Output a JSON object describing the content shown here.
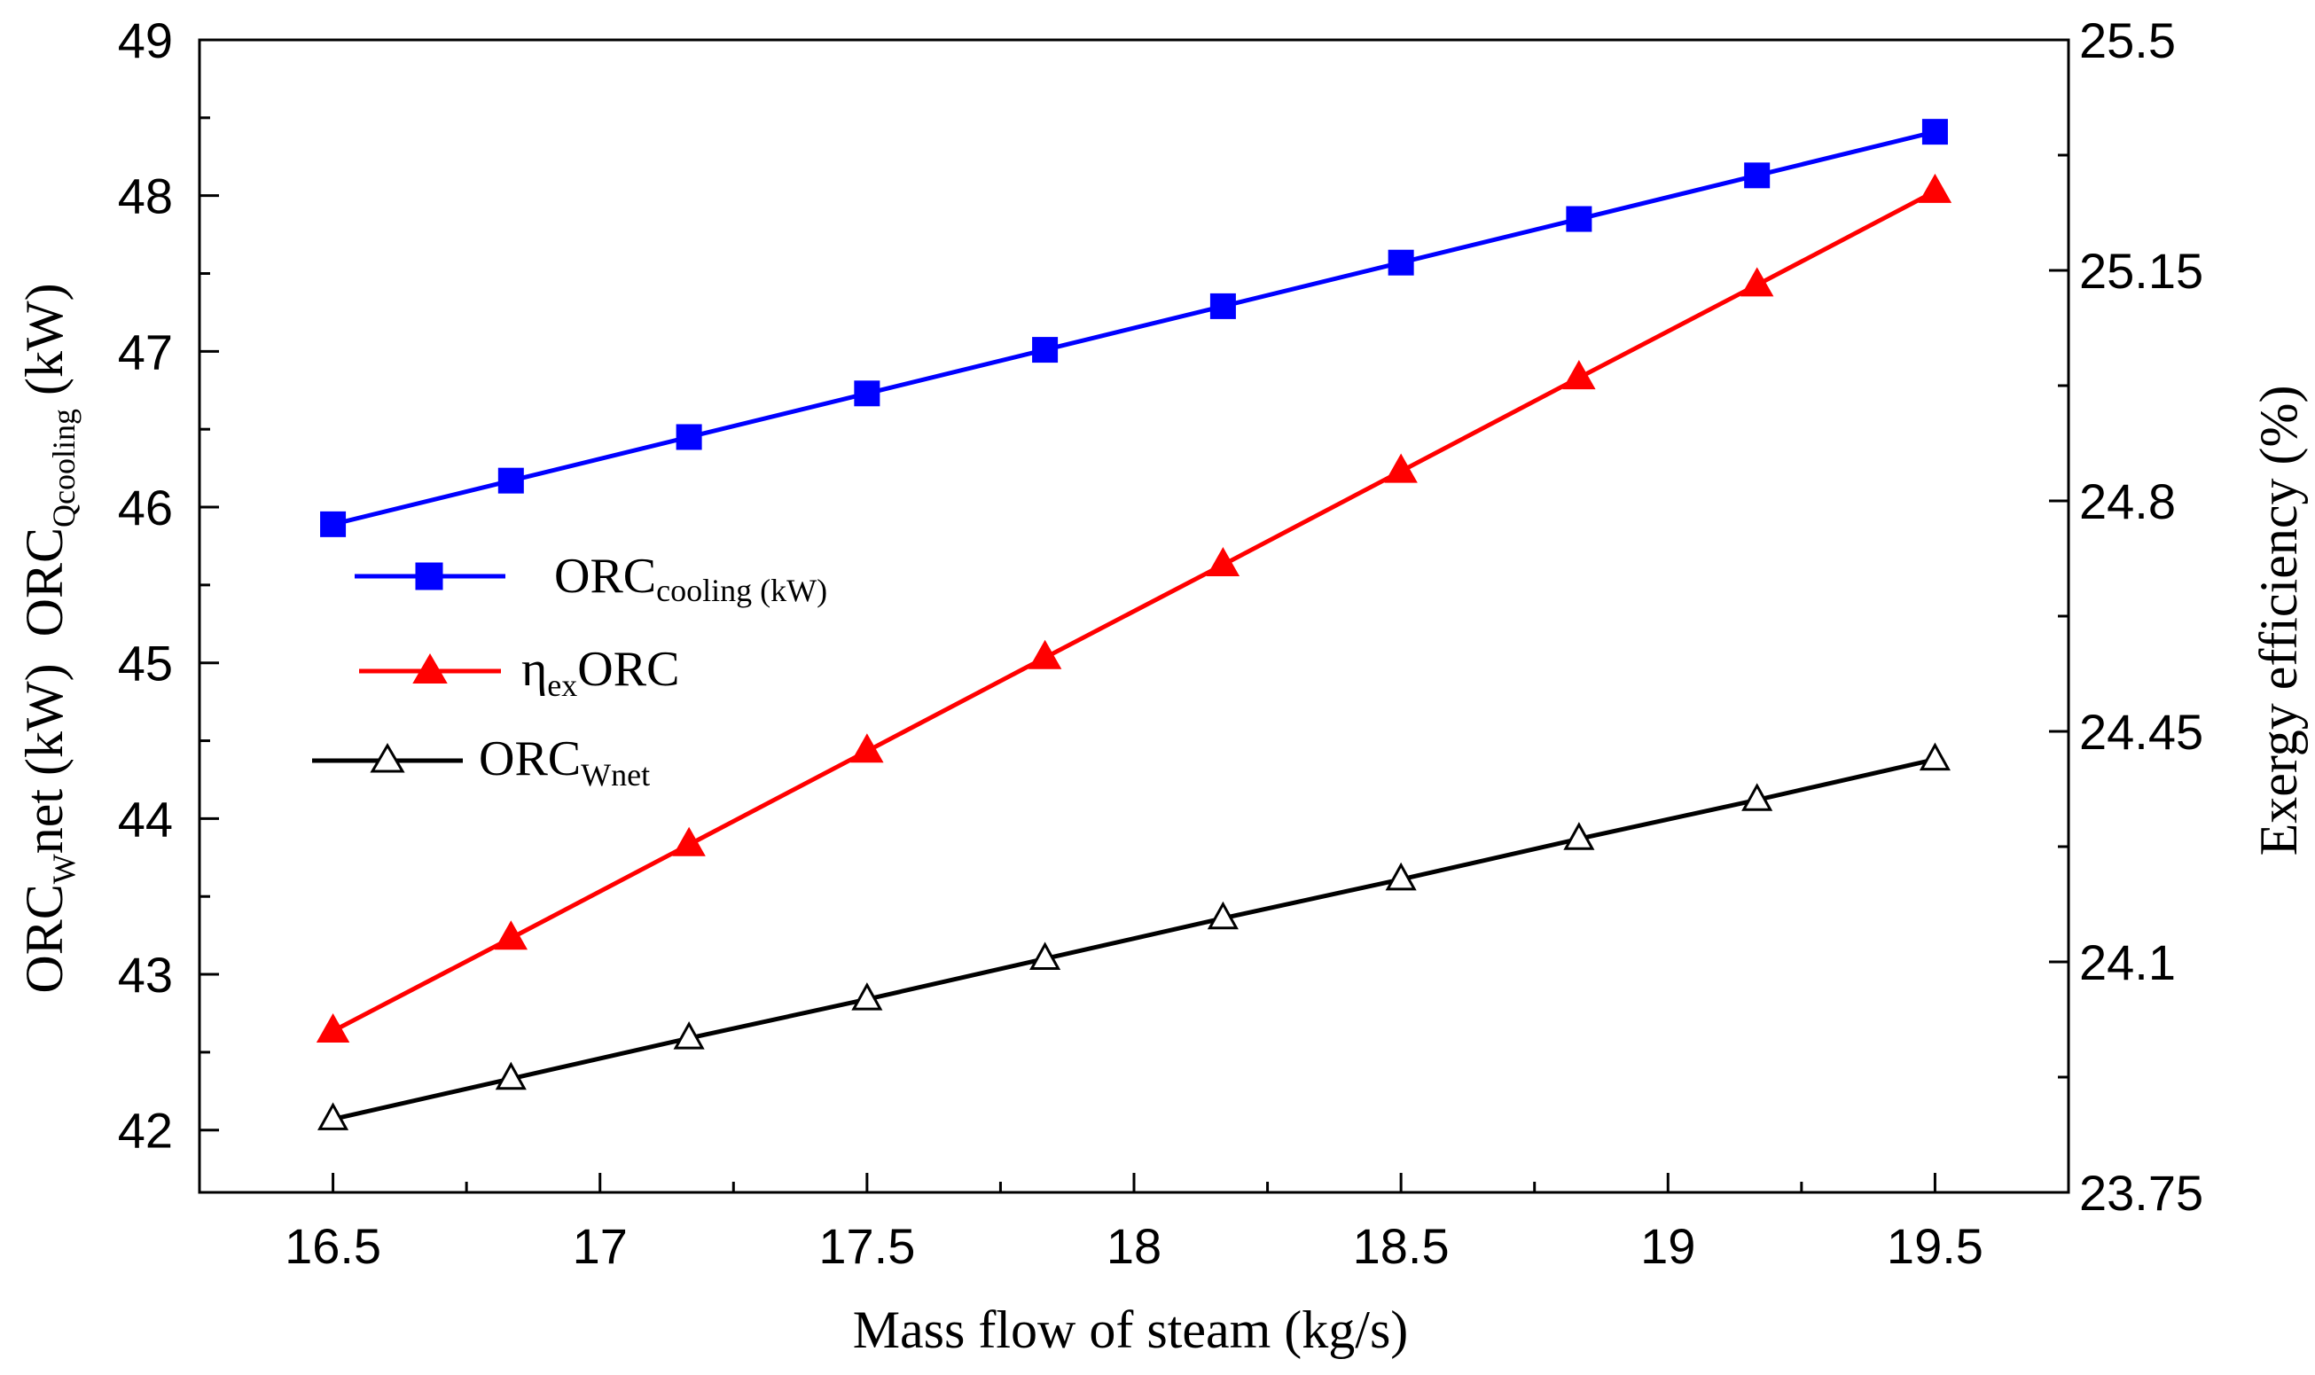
{
  "chart_data": {
    "type": "line",
    "xlabel": "Mass flow of steam (kg/s)",
    "ylabel_left": {
      "prefix1": "ORC",
      "sub1": "W",
      "rest1": "net (kW)",
      "prefix2": "ORC",
      "sub2": "Qcooling",
      "rest2": " (kW)"
    },
    "ylabel_right": "Exergy efficiency (%)",
    "x": [
      16.5,
      16.8333,
      17.1667,
      17.5,
      17.8333,
      18.1667,
      18.5,
      18.8333,
      19.1667,
      19.5
    ],
    "xlim": [
      16.25,
      19.75
    ],
    "xticks": [
      16.5,
      17,
      17.5,
      18,
      18.5,
      19,
      19.5
    ],
    "xtick_labels": [
      "16.5",
      "17",
      "17.5",
      "18",
      "18.5",
      "19",
      "19.5"
    ],
    "ylim_left": [
      41.6,
      49
    ],
    "yticks_left": [
      42,
      43,
      44,
      45,
      46,
      47,
      48,
      49
    ],
    "ytick_labels_left": [
      "42",
      "43",
      "44",
      "45",
      "46",
      "47",
      "48",
      "49"
    ],
    "ylim_right": [
      23.75,
      25.5
    ],
    "yticks_right": [
      23.75,
      24.1,
      24.45,
      24.8,
      25.15,
      25.5
    ],
    "ytick_labels_right": [
      "23.75",
      "24.1",
      "24.45",
      "24.8",
      "25.15",
      "25.5"
    ],
    "series": [
      {
        "key": "cooling",
        "name": "ORC cooling (kW)",
        "axis": "left",
        "color": "#0000ff",
        "marker": "square-filled",
        "values": [
          45.89,
          46.17,
          46.45,
          46.73,
          47.01,
          47.29,
          47.57,
          47.85,
          48.13,
          48.41
        ]
      },
      {
        "key": "exergy",
        "name": "ηex ORC",
        "axis": "right",
        "color": "#ff0000",
        "marker": "triangle-filled",
        "values": [
          23.995,
          24.136,
          24.278,
          24.42,
          24.562,
          24.703,
          24.845,
          24.987,
          25.128,
          25.27
        ]
      },
      {
        "key": "wnet",
        "name": "ORC Wnet",
        "axis": "left",
        "color": "#000000",
        "marker": "triangle-open",
        "values": [
          42.07,
          42.33,
          42.59,
          42.84,
          43.1,
          43.36,
          43.61,
          43.87,
          44.12,
          44.38
        ]
      }
    ],
    "legend": {
      "placement": "center-left",
      "entries": [
        {
          "key": "cooling",
          "main": "ORC",
          "sub": "cooling (kW)"
        },
        {
          "key": "exergy",
          "main": "η",
          "sub": "ex",
          "tail": "ORC"
        },
        {
          "key": "wnet",
          "main": "ORC",
          "sub": "Wnet"
        }
      ]
    }
  }
}
